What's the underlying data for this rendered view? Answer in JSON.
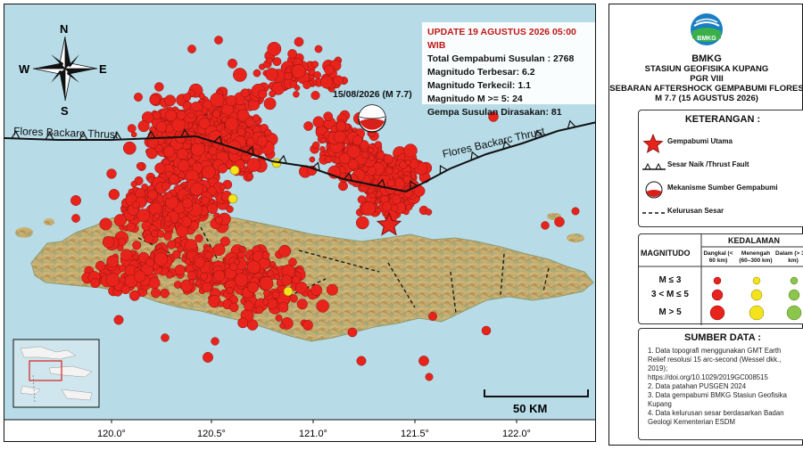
{
  "map": {
    "update_text": "UPDATE 19 AGUSTUS 2026 05:00 WIB",
    "stats": [
      "Total Gempabumi Susulan : 2768",
      "Magnitudo Terbesar: 6.2",
      "Magnitudo Terkecil: 1.1",
      "Magnitudo M >= 5: 24",
      "Gempa Susulan Dirasakan: 81"
    ],
    "mainshock_label": "15/08/2026 (M 7.7)",
    "fault_label_left": "Flores Backarc Thrust",
    "fault_label_right": "Flores Backarc Thrust",
    "scale_label": "50 KM",
    "compass": {
      "n": "N",
      "s": "S",
      "e": "E",
      "w": "W"
    },
    "x_ticks": [
      "120.0°",
      "120.5°",
      "121.0°",
      "121.5°",
      "122.0°"
    ],
    "colors": {
      "sea": "#b7dce8",
      "shallow": "#e8231c",
      "medium": "#f3e31a",
      "deep": "#8bc64a",
      "land": "#cdb273"
    }
  },
  "legend": {
    "org": "BMKG",
    "station": "STASIUN GEOFISIKA KUPANG",
    "region": "PGR VIII",
    "map_title_1": "SEBARAN AFTERSHOCK GEMPABUMI FLORES",
    "map_title_2": "M 7.7 (15 AGUSTUS 2026)",
    "keterangan_title": "KETERANGAN :",
    "items": {
      "mainshock": "Gempabumi Utama",
      "fault": "Sesar Naik /Thrust Fault",
      "mechanism": "Mekanisme Sumber Gempabumi",
      "lineament": "Kelurusan Sesar"
    },
    "magnitudo_title": "MAGNITUDO",
    "kedalaman_title": "KEDALAMAN",
    "depths": [
      "Dangkal (< 60 km)",
      "Menengah (60–300 km)",
      "Dalam (> 300 km)"
    ],
    "mag_rows": [
      "M ≤ 3",
      "3 < M ≤ 5",
      "M > 5"
    ],
    "sumber_title": "SUMBER DATA :",
    "sources": [
      "1. Data topografi menggunakan GMT Earth",
      "   Relief resolusi 15 arc-second (Wessel dkk.,",
      "   2019);",
      "   https://doi.org/10.1029/2019GC008515",
      "2. Data patahan PUSGEN 2024",
      "3. Data gempabumi BMKG Stasiun Geofisika",
      "   Kupang",
      "4. Data kelurusan sesar berdasarkan Badan",
      "   Geologi Kementerian ESDM"
    ]
  }
}
